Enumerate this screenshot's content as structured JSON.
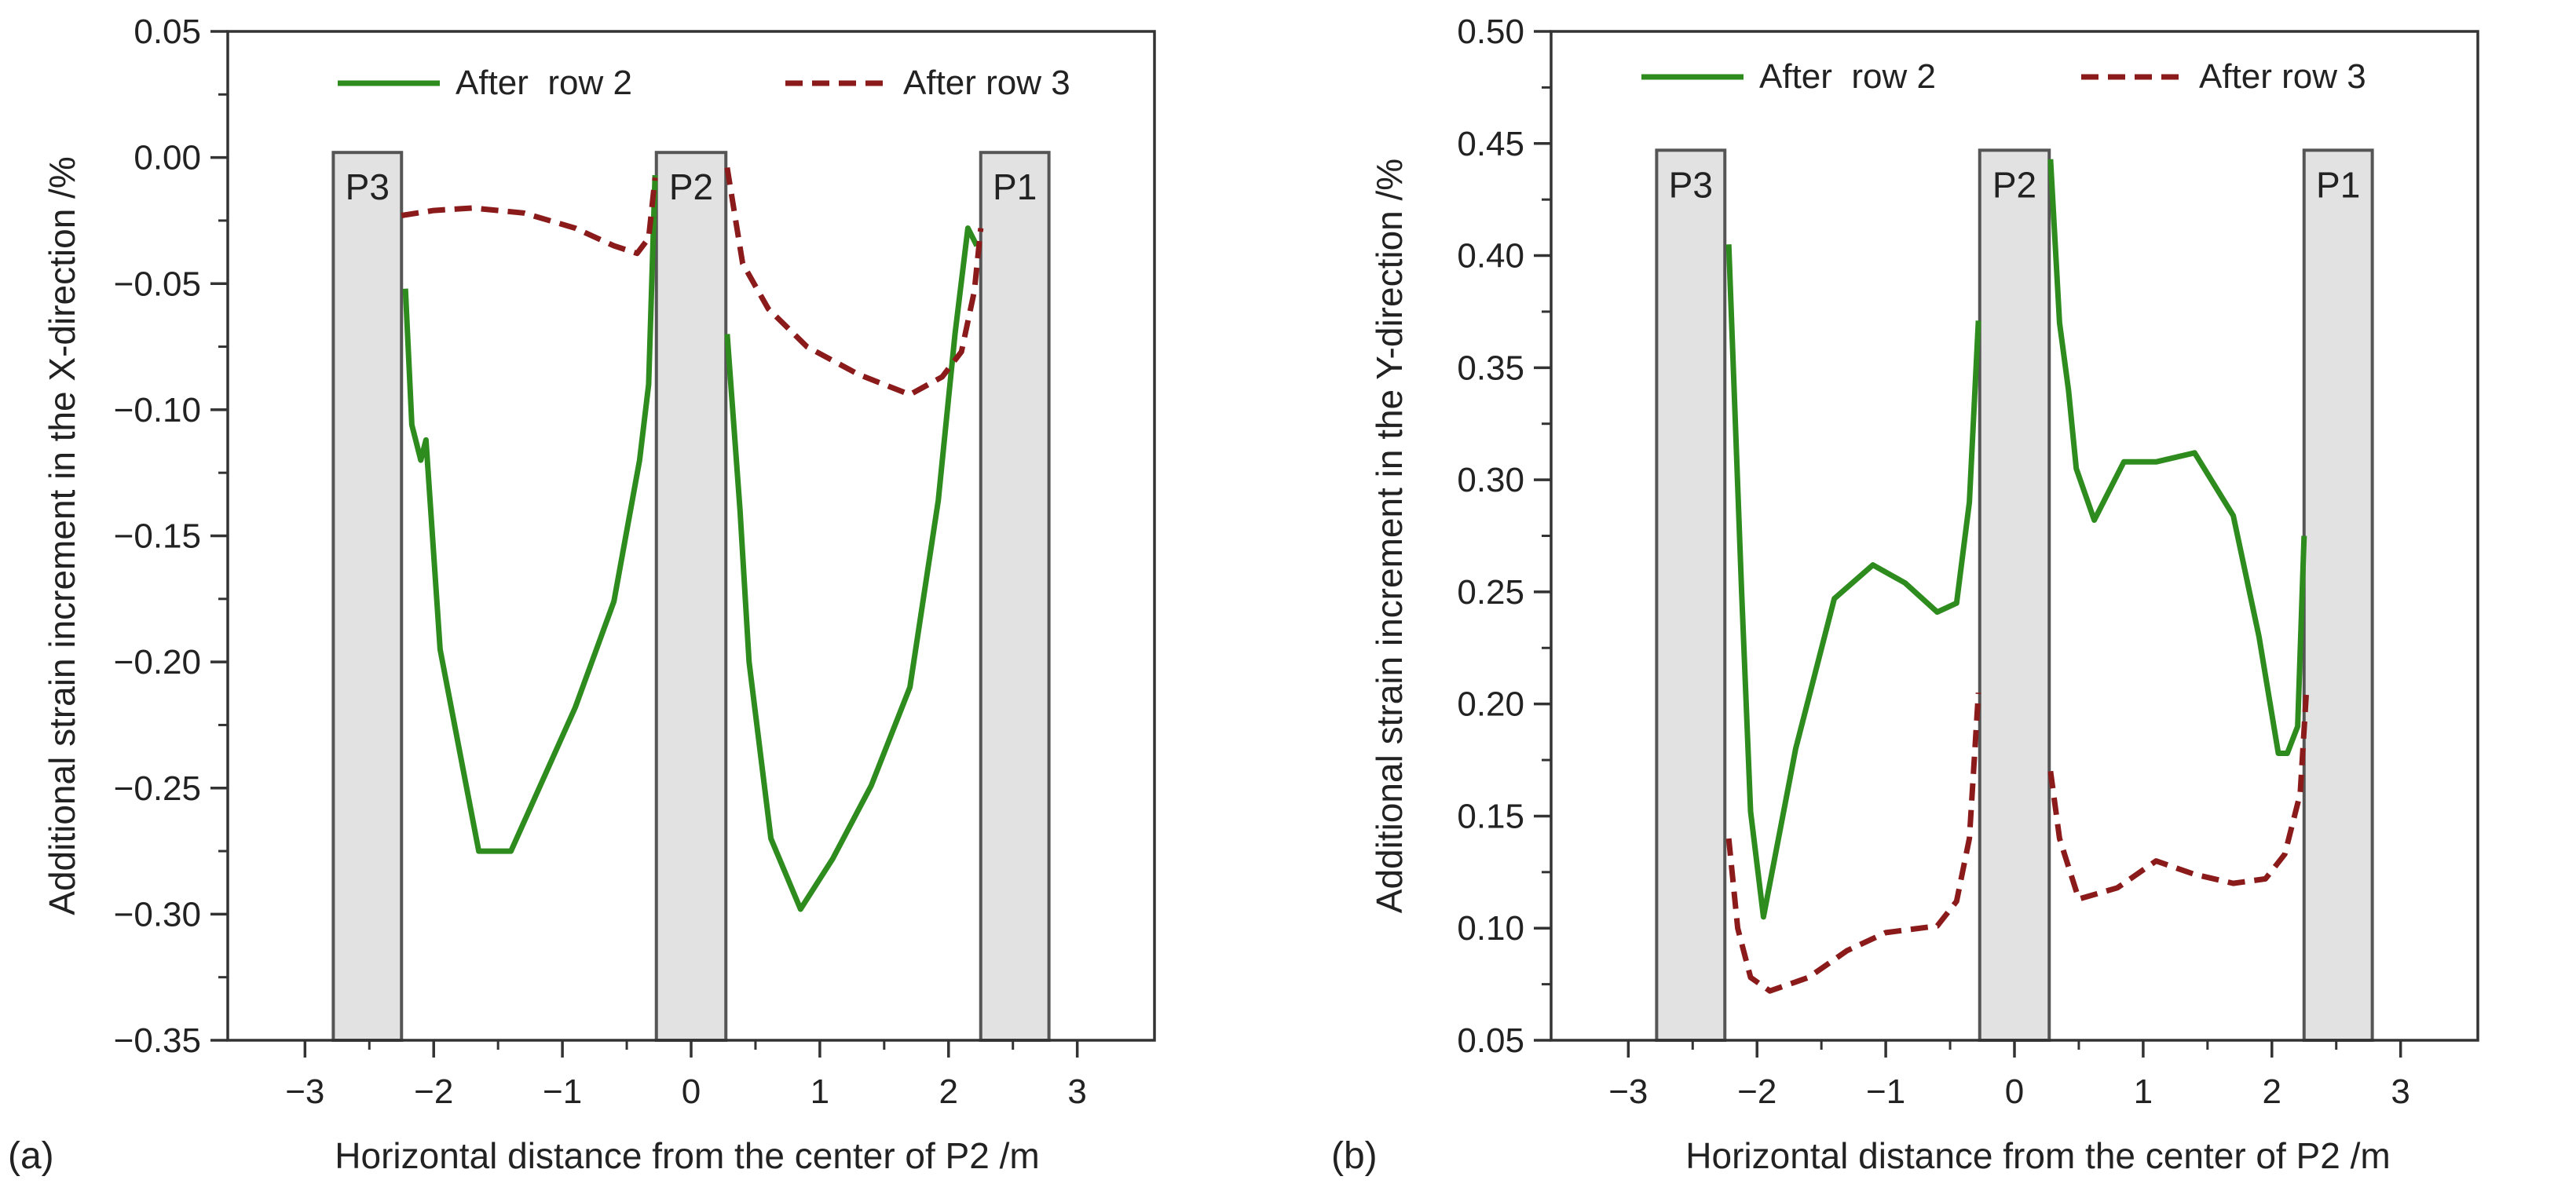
{
  "colors": {
    "after_row_2": "#2e8b1e",
    "after_row_3": "#8b1a1a",
    "pile_fill": "#e2e2e2",
    "pile_stroke": "#555555",
    "axis": "#333333"
  },
  "chart_data": [
    {
      "type": "line",
      "panel_label": "(a)",
      "xlabel": "Horizontal distance from the center of P2 /m",
      "ylabel": "Additional strain increment in the X-direction /%",
      "xlim": [
        -3.6,
        3.6
      ],
      "ylim": [
        -0.35,
        0.05
      ],
      "xticks": [
        -3,
        -2,
        -1,
        0,
        1,
        2,
        3
      ],
      "xtick_labels": [
        "−3",
        "−2",
        "−1",
        "0",
        "1",
        "2",
        "3"
      ],
      "yticks": [
        0.05,
        0.0,
        -0.05,
        -0.1,
        -0.15,
        -0.2,
        -0.25,
        -0.3,
        -0.35
      ],
      "ytick_labels": [
        "0.05",
        "0.00",
        "−0.05",
        "−0.10",
        "−0.15",
        "−0.20",
        "−0.25",
        "−0.30",
        "−0.35"
      ],
      "grid": false,
      "legend_position": "top",
      "piles": [
        {
          "label": "P3",
          "x0": -2.78,
          "x1": -2.25,
          "y_top": 0.002
        },
        {
          "label": "P2",
          "x0": -0.27,
          "x1": 0.27,
          "y_top": 0.002
        },
        {
          "label": "P1",
          "x0": 2.25,
          "x1": 2.78,
          "y_top": 0.002
        }
      ],
      "series": [
        {
          "name": "After  row 2",
          "style": "solid",
          "segments": [
            [
              [
                -2.22,
                -0.052
              ],
              [
                -2.17,
                -0.106
              ],
              [
                -2.1,
                -0.12
              ],
              [
                -2.06,
                -0.112
              ],
              [
                -1.95,
                -0.195
              ],
              [
                -1.65,
                -0.275
              ],
              [
                -1.4,
                -0.275
              ],
              [
                -0.9,
                -0.218
              ],
              [
                -0.6,
                -0.176
              ],
              [
                -0.4,
                -0.12
              ],
              [
                -0.33,
                -0.09
              ],
              [
                -0.28,
                -0.007
              ]
            ],
            [
              [
                0.28,
                -0.07
              ],
              [
                0.38,
                -0.14
              ],
              [
                0.45,
                -0.2
              ],
              [
                0.62,
                -0.27
              ],
              [
                0.85,
                -0.298
              ],
              [
                1.1,
                -0.278
              ],
              [
                1.4,
                -0.249
              ],
              [
                1.7,
                -0.21
              ],
              [
                1.92,
                -0.136
              ],
              [
                2.05,
                -0.07
              ],
              [
                2.15,
                -0.028
              ],
              [
                2.22,
                -0.035
              ]
            ]
          ]
        },
        {
          "name": "After row 3",
          "style": "dashed",
          "segments": [
            [
              [
                -2.25,
                -0.023
              ],
              [
                -2.0,
                -0.021
              ],
              [
                -1.7,
                -0.02
              ],
              [
                -1.3,
                -0.022
              ],
              [
                -0.9,
                -0.028
              ],
              [
                -0.6,
                -0.035
              ],
              [
                -0.42,
                -0.038
              ],
              [
                -0.33,
                -0.032
              ],
              [
                -0.28,
                -0.008
              ]
            ],
            [
              [
                0.28,
                -0.004
              ],
              [
                0.4,
                -0.042
              ],
              [
                0.6,
                -0.06
              ],
              [
                0.9,
                -0.075
              ],
              [
                1.3,
                -0.086
              ],
              [
                1.7,
                -0.094
              ],
              [
                1.95,
                -0.087
              ],
              [
                2.1,
                -0.077
              ],
              [
                2.2,
                -0.053
              ],
              [
                2.25,
                -0.028
              ]
            ]
          ]
        }
      ]
    },
    {
      "type": "line",
      "panel_label": "(b)",
      "xlabel": "Horizontal distance from the center of P2 /m",
      "ylabel": "Additional strain increment in the Y-direction /%",
      "xlim": [
        -3.6,
        3.6
      ],
      "ylim": [
        0.05,
        0.5
      ],
      "xticks": [
        -3,
        -2,
        -1,
        0,
        1,
        2,
        3
      ],
      "xtick_labels": [
        "−3",
        "−2",
        "−1",
        "0",
        "1",
        "2",
        "3"
      ],
      "yticks": [
        0.5,
        0.45,
        0.4,
        0.35,
        0.3,
        0.25,
        0.2,
        0.15,
        0.1,
        0.05
      ],
      "ytick_labels": [
        "0.50",
        "0.45",
        "0.40",
        "0.35",
        "0.30",
        "0.25",
        "0.20",
        "0.15",
        "0.10",
        "0.05"
      ],
      "grid": false,
      "legend_position": "top",
      "piles": [
        {
          "label": "P3",
          "x0": -2.78,
          "x1": -2.25,
          "y_top": 0.447
        },
        {
          "label": "P2",
          "x0": -0.27,
          "x1": 0.27,
          "y_top": 0.447
        },
        {
          "label": "P1",
          "x0": 2.25,
          "x1": 2.78,
          "y_top": 0.447
        }
      ],
      "series": [
        {
          "name": "After  row 2",
          "style": "solid",
          "segments": [
            [
              [
                -2.22,
                0.405
              ],
              [
                -2.12,
                0.25
              ],
              [
                -2.05,
                0.152
              ],
              [
                -1.95,
                0.105
              ],
              [
                -1.7,
                0.18
              ],
              [
                -1.4,
                0.247
              ],
              [
                -1.1,
                0.262
              ],
              [
                -0.85,
                0.254
              ],
              [
                -0.6,
                0.241
              ],
              [
                -0.45,
                0.245
              ],
              [
                -0.35,
                0.29
              ],
              [
                -0.28,
                0.371
              ]
            ],
            [
              [
                0.28,
                0.443
              ],
              [
                0.35,
                0.37
              ],
              [
                0.42,
                0.34
              ],
              [
                0.48,
                0.305
              ],
              [
                0.62,
                0.282
              ],
              [
                0.85,
                0.308
              ],
              [
                1.1,
                0.308
              ],
              [
                1.4,
                0.312
              ],
              [
                1.7,
                0.284
              ],
              [
                1.9,
                0.23
              ],
              [
                2.05,
                0.178
              ],
              [
                2.12,
                0.178
              ],
              [
                2.2,
                0.19
              ],
              [
                2.25,
                0.275
              ]
            ]
          ]
        },
        {
          "name": "After row 3",
          "style": "dashed",
          "segments": [
            [
              [
                -2.22,
                0.14
              ],
              [
                -2.15,
                0.1
              ],
              [
                -2.05,
                0.078
              ],
              [
                -1.9,
                0.072
              ],
              [
                -1.6,
                0.078
              ],
              [
                -1.3,
                0.09
              ],
              [
                -1.0,
                0.098
              ],
              [
                -0.6,
                0.101
              ],
              [
                -0.45,
                0.112
              ],
              [
                -0.35,
                0.14
              ],
              [
                -0.28,
                0.205
              ]
            ],
            [
              [
                0.28,
                0.17
              ],
              [
                0.35,
                0.14
              ],
              [
                0.5,
                0.113
              ],
              [
                0.8,
                0.118
              ],
              [
                1.1,
                0.13
              ],
              [
                1.4,
                0.124
              ],
              [
                1.7,
                0.12
              ],
              [
                1.95,
                0.122
              ],
              [
                2.1,
                0.133
              ],
              [
                2.22,
                0.16
              ],
              [
                2.27,
                0.207
              ]
            ]
          ]
        }
      ]
    }
  ]
}
